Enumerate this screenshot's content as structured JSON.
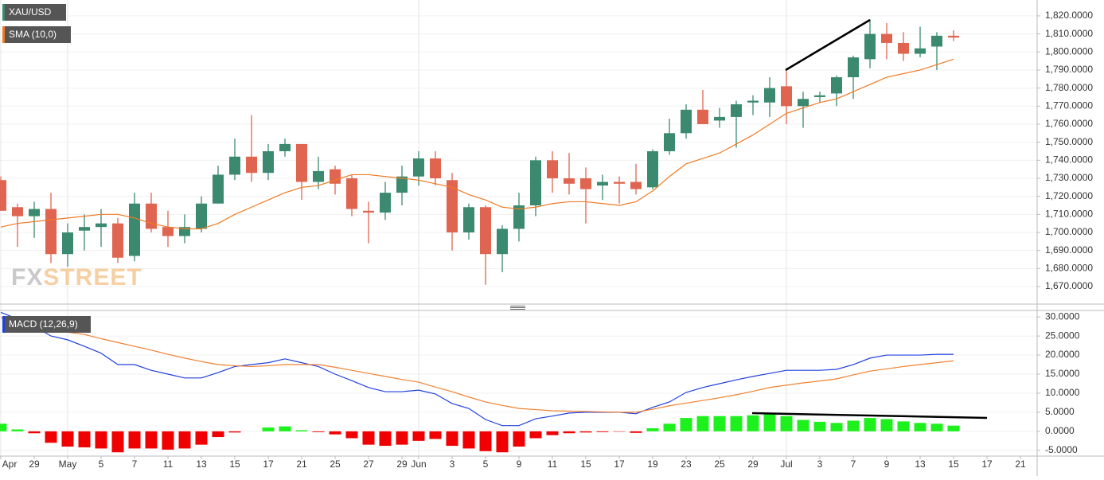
{
  "chart_data": [
    {
      "type": "candlestick",
      "ylim": [
        1660.3,
        1828.8
      ],
      "yticks": [
        {
          "value": 1670,
          "label": "1,670.0000"
        },
        {
          "value": 1680,
          "label": "1,680.0000"
        },
        {
          "value": 1690,
          "label": "1,690.0000"
        },
        {
          "value": 1700,
          "label": "1,700.0000"
        },
        {
          "value": 1710,
          "label": "1,710.0000"
        },
        {
          "value": 1720,
          "label": "1,720.0000"
        },
        {
          "value": 1730,
          "label": "1,730.0000"
        },
        {
          "value": 1740,
          "label": "1,740.0000"
        },
        {
          "value": 1750,
          "label": "1,750.0000"
        },
        {
          "value": 1760,
          "label": "1,760.0000"
        },
        {
          "value": 1770,
          "label": "1,770.0000"
        },
        {
          "value": 1780,
          "label": "1,780.0000"
        },
        {
          "value": 1790,
          "label": "1,790.0000"
        },
        {
          "value": 1800,
          "label": "1,800.0000"
        },
        {
          "value": 1810,
          "label": "1,810.0000"
        },
        {
          "value": 1820,
          "label": "1,820.0000"
        }
      ],
      "watermark": "FXSTREET",
      "series": [
        {
          "name": "XAU/USD",
          "type": "candlestick",
          "up_color": "#3b8a70",
          "down_color": "#e06550",
          "open": [
            1729,
            1714,
            1709,
            1713,
            1688,
            1701,
            1703,
            1705,
            1687,
            1716,
            1703,
            1698,
            1702,
            1716,
            1732,
            1742,
            1733,
            1745,
            1749,
            1728,
            1735,
            1730,
            1712,
            1711,
            1722,
            1731,
            1741,
            1729,
            1700,
            1714,
            1688,
            1702,
            1715,
            1740,
            1730,
            1730,
            1726,
            1728,
            1728,
            1725,
            1745,
            1755,
            1768,
            1762,
            1764,
            1772,
            1772,
            1781,
            1770,
            1775,
            1777,
            1786,
            1796,
            1810,
            1805,
            1799,
            1803,
            1809
          ],
          "high": [
            1731,
            1716,
            1717,
            1722,
            1705,
            1710,
            1713,
            1708,
            1722,
            1722,
            1712,
            1710,
            1720,
            1737,
            1752,
            1765,
            1749,
            1752,
            1749,
            1742,
            1737,
            1732,
            1717,
            1728,
            1737,
            1745,
            1745,
            1733,
            1716,
            1715,
            1704,
            1722,
            1742,
            1745,
            1744,
            1736,
            1732,
            1731,
            1738,
            1746,
            1763,
            1771,
            1779,
            1769,
            1773,
            1776,
            1786,
            1790,
            1778,
            1778,
            1787,
            1798,
            1818,
            1816,
            1811,
            1814,
            1811,
            1812
          ],
          "low": [
            1712,
            1692,
            1697,
            1683,
            1681,
            1690,
            1692,
            1683,
            1684,
            1700,
            1692,
            1694,
            1700,
            1716,
            1729,
            1728,
            1729,
            1742,
            1718,
            1724,
            1721,
            1709,
            1694,
            1707,
            1715,
            1726,
            1726,
            1690,
            1696,
            1671,
            1678,
            1695,
            1709,
            1722,
            1721,
            1705,
            1718,
            1716,
            1721,
            1724,
            1743,
            1752,
            1760,
            1758,
            1747,
            1765,
            1764,
            1760,
            1758,
            1772,
            1770,
            1774,
            1791,
            1796,
            1795,
            1797,
            1790,
            1806
          ],
          "close": [
            1712,
            1709,
            1713,
            1688,
            1700,
            1703,
            1705,
            1686,
            1716,
            1702,
            1698,
            1703,
            1716,
            1732,
            1742,
            1733,
            1745,
            1749,
            1728,
            1734,
            1727,
            1713,
            1711,
            1722,
            1731,
            1741,
            1730,
            1700,
            1714,
            1688,
            1702,
            1715,
            1740,
            1730,
            1727,
            1724,
            1728,
            1727,
            1724,
            1745,
            1755,
            1768,
            1760,
            1764,
            1771,
            1773,
            1780,
            1770,
            1774,
            1776,
            1786,
            1797,
            1810,
            1805,
            1799,
            1802,
            1809,
            1808
          ]
        },
        {
          "name": "SMA (10,0)",
          "type": "line",
          "color": "#f07a24",
          "values": [
            1703,
            1705,
            1706,
            1707,
            1708,
            1709,
            1710,
            1710,
            1708,
            1705,
            1703,
            1702,
            1702,
            1705,
            1710,
            1714,
            1718,
            1722,
            1725,
            1726,
            1729,
            1732,
            1732,
            1731,
            1730,
            1729,
            1727,
            1725,
            1721,
            1718,
            1714,
            1713,
            1714,
            1716,
            1717,
            1717,
            1716,
            1715,
            1717,
            1723,
            1731,
            1738,
            1741,
            1744,
            1749,
            1754,
            1760,
            1766,
            1769,
            1772,
            1774,
            1778,
            1782,
            1786,
            1788,
            1790,
            1793,
            1796
          ]
        }
      ]
    },
    {
      "type": "macd",
      "indicator": "MACD (12,26,9)",
      "indicator_color": "#2040e0",
      "ylim": [
        -6.5,
        31.7
      ],
      "yticks": [
        {
          "value": -5,
          "label": "-5.0000"
        },
        {
          "value": 0,
          "label": "0.0000"
        },
        {
          "value": 5,
          "label": "5.0000"
        },
        {
          "value": 10,
          "label": "10.0000"
        },
        {
          "value": 15,
          "label": "15.0000"
        },
        {
          "value": 20,
          "label": "20.0000"
        },
        {
          "value": 25,
          "label": "25.0000"
        },
        {
          "value": 30,
          "label": "30.0000"
        }
      ],
      "categories": [
        "Apr",
        null,
        "29",
        null,
        "May",
        null,
        "5",
        null,
        "7",
        null,
        "11",
        null,
        "13",
        null,
        "15",
        null,
        "17",
        null,
        "21",
        null,
        "25",
        null,
        "27",
        null,
        "29",
        "Jun",
        null,
        "3",
        null,
        "5",
        null,
        "9",
        null,
        "11",
        null,
        "15",
        null,
        "17",
        null,
        "19",
        null,
        "23",
        null,
        "25",
        null,
        "29",
        null,
        "Jul",
        null,
        "3",
        null,
        "7",
        null,
        "9",
        null,
        "13",
        null,
        "15",
        null,
        "17",
        null,
        "21"
      ],
      "series": [
        {
          "type": "bar",
          "color": "#1ef01e",
          "negative_color": "#f00000",
          "values": [
            2,
            0.5,
            -0.5,
            -3,
            -4,
            -4.2,
            -4.5,
            -5.5,
            -4.5,
            -4.5,
            -4.8,
            -4.5,
            -3.5,
            -1.5,
            -0.3,
            0,
            1,
            1.3,
            0.3,
            -0.2,
            -0.8,
            -1.8,
            -3.5,
            -3.8,
            -3.5,
            -2.5,
            -2,
            -3.8,
            -4.5,
            -5.2,
            -5.5,
            -4,
            -1.8,
            -1,
            -0.5,
            -0.3,
            -0.2,
            -0.1,
            -0.4,
            0.8,
            2,
            3.5,
            4,
            4,
            4,
            4.2,
            4.5,
            4,
            3,
            2.5,
            2.2,
            2.8,
            3.5,
            3.2,
            2.6,
            2.2,
            2,
            1.5,
            null,
            null,
            null,
            null
          ]
        },
        {
          "type": "line",
          "color": "#2040e0",
          "values": [
            31.2,
            29.5,
            27.5,
            25,
            24,
            22.3,
            20.5,
            17.5,
            17.5,
            16,
            15,
            14,
            14,
            15.4,
            17,
            17.5,
            18,
            19,
            18,
            17,
            15,
            13.3,
            11.5,
            10.4,
            10.4,
            10.8,
            9.8,
            7.3,
            6,
            3.1,
            1.5,
            1.5,
            3.3,
            4,
            4.8,
            5,
            5,
            5,
            4.6,
            6.3,
            7.7,
            10.2,
            11.5,
            12.5,
            13.5,
            14.4,
            15.2,
            16,
            16,
            16,
            16.25,
            17.5,
            19.2,
            20,
            20,
            20,
            20.2,
            20.2,
            null,
            null,
            null,
            null
          ]
        },
        {
          "type": "line",
          "color": "#f08030",
          "values": [
            29.8,
            28.8,
            27.8,
            26.8,
            26,
            25.4,
            24.3,
            23.3,
            22.3,
            21.3,
            20.2,
            19.2,
            18.3,
            17.5,
            17.2,
            17,
            17.2,
            17.5,
            17.5,
            17.5,
            16.8,
            16,
            15.2,
            14.4,
            13.6,
            12.9,
            11.6,
            10.4,
            9,
            7.7,
            6.8,
            6,
            5.7,
            5.4,
            5.3,
            5.2,
            5.1,
            5,
            5,
            5.8,
            6.7,
            7.4,
            8.1,
            8.8,
            9.6,
            10.5,
            11.5,
            12.1,
            12.7,
            13.2,
            13.75,
            14.8,
            15.8,
            16.4,
            17,
            17.5,
            18,
            18.5,
            null,
            null,
            null,
            null
          ]
        }
      ]
    }
  ]
}
